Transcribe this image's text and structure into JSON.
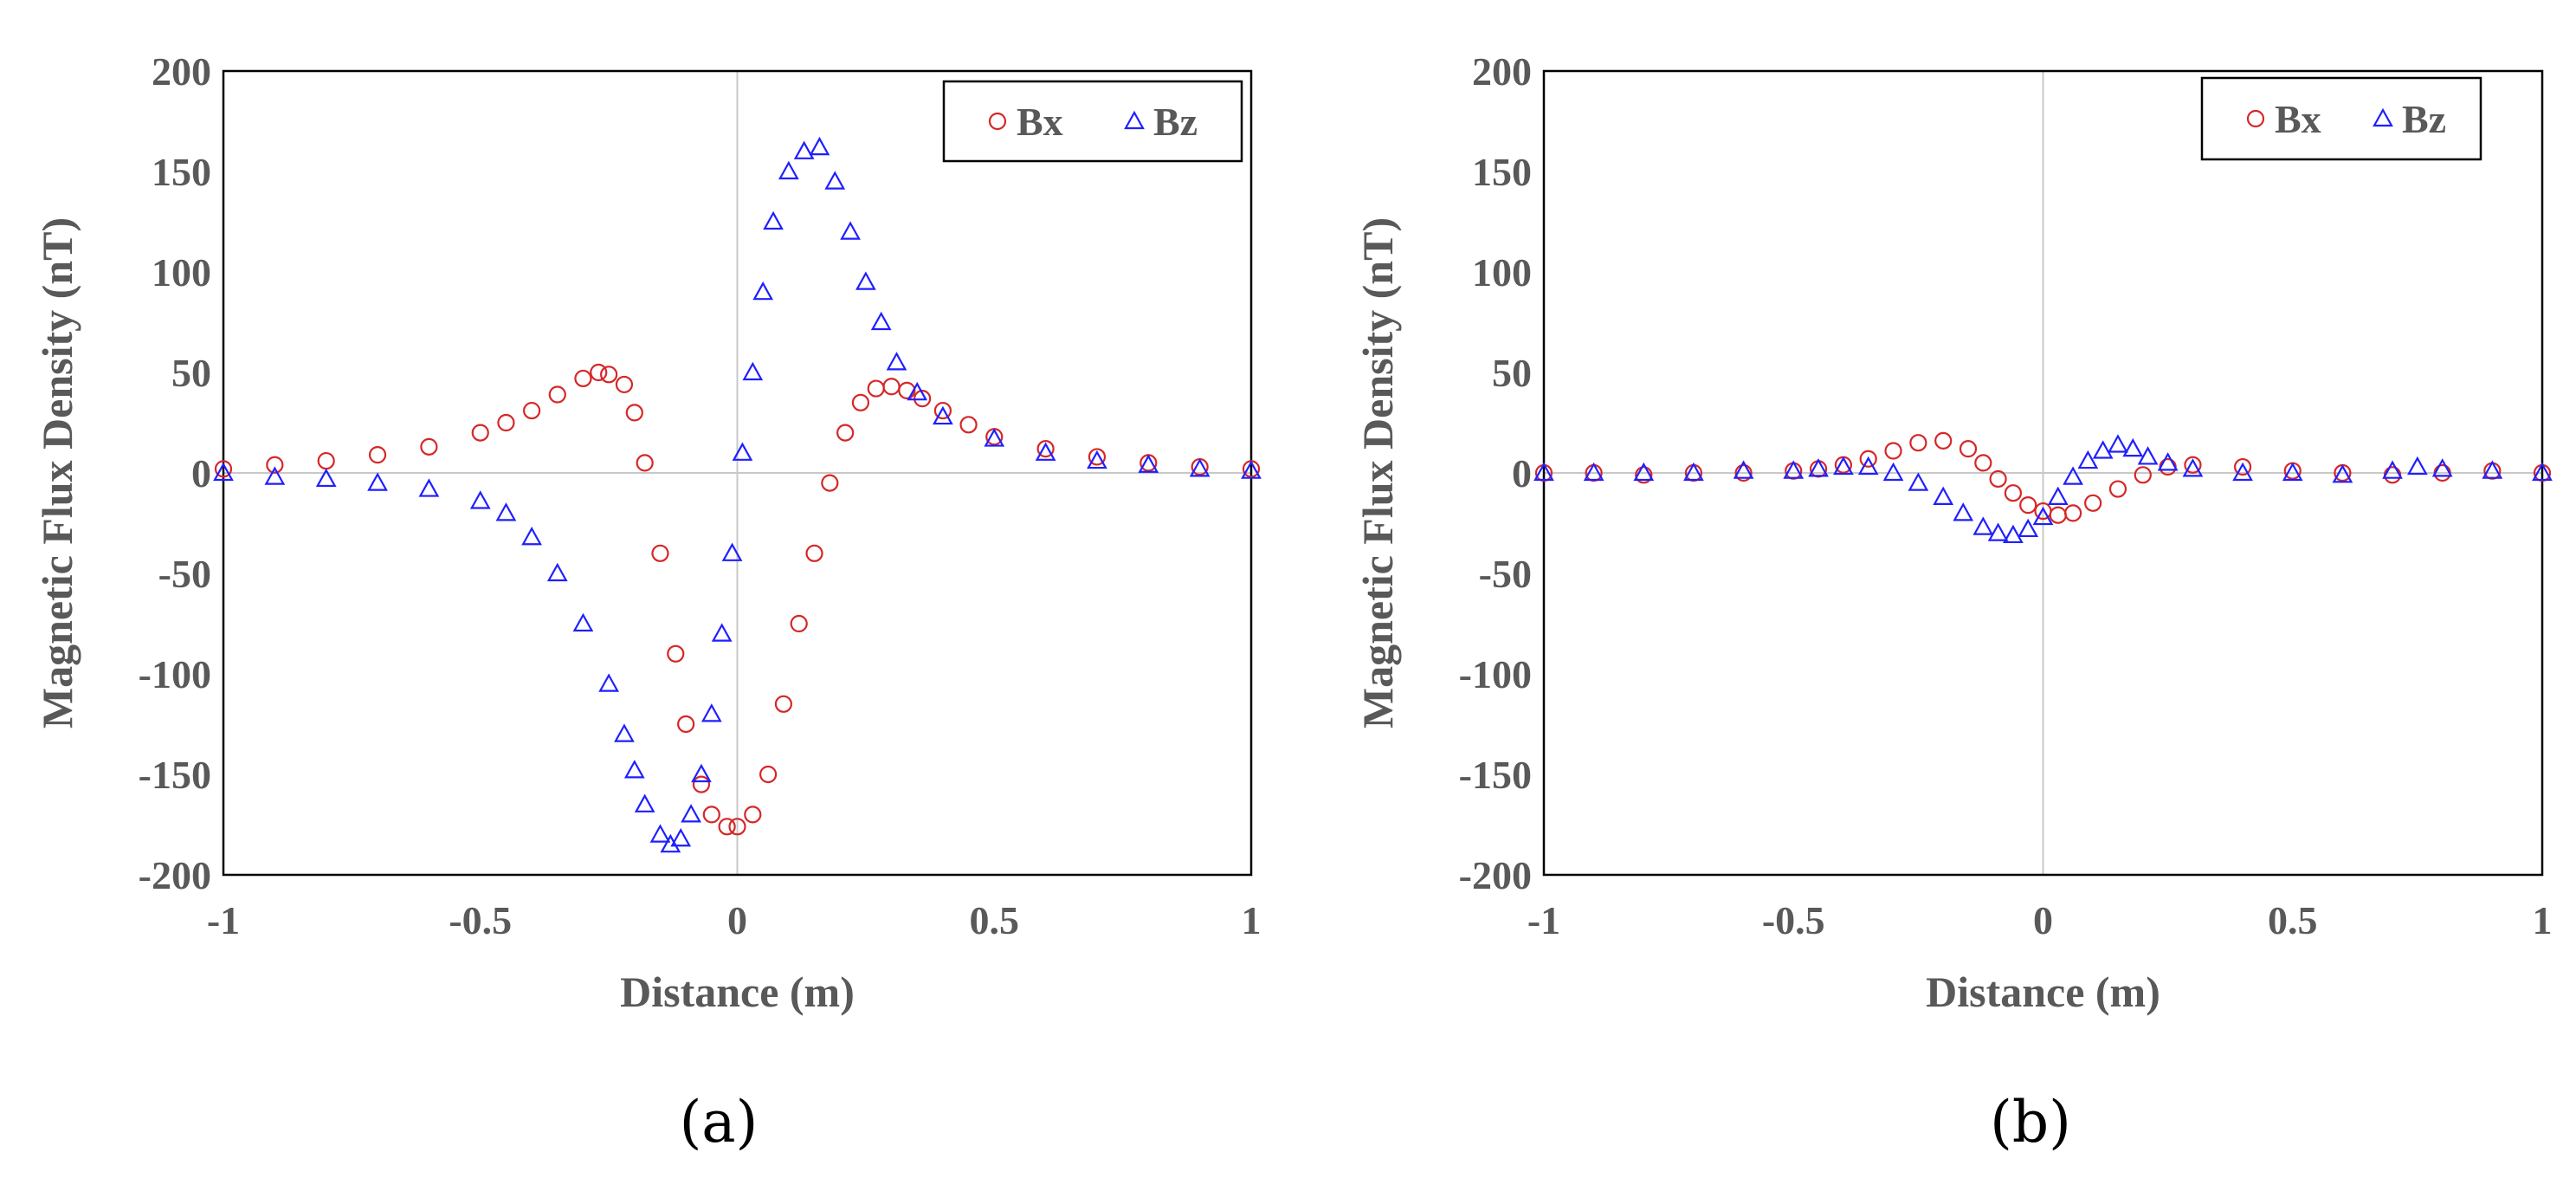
{
  "chart_data": [
    {
      "type": "scatter",
      "panel_label": "(a)",
      "xlabel": "Distance (m)",
      "ylabel": "Magnetic Flux Density (nT)",
      "xlim": [
        -1,
        1
      ],
      "ylim": [
        -200,
        200
      ],
      "xticks": [
        "-1",
        "-0.5",
        "0",
        "0.5",
        "1"
      ],
      "yticks": [
        "200",
        "150",
        "100",
        "50",
        "0",
        "-50",
        "-100",
        "-150",
        "-200"
      ],
      "legend_position": "top-right",
      "series": [
        {
          "name": "Bx",
          "marker": "circle",
          "color": "#d62728",
          "x": [
            -1.0,
            -0.9,
            -0.8,
            -0.7,
            -0.6,
            -0.5,
            -0.45,
            -0.4,
            -0.35,
            -0.3,
            -0.27,
            -0.25,
            -0.22,
            -0.2,
            -0.18,
            -0.15,
            -0.12,
            -0.1,
            -0.07,
            -0.05,
            -0.02,
            0.0,
            0.03,
            0.06,
            0.09,
            0.12,
            0.15,
            0.18,
            0.21,
            0.24,
            0.27,
            0.3,
            0.33,
            0.36,
            0.4,
            0.45,
            0.5,
            0.6,
            0.7,
            0.8,
            0.9,
            1.0
          ],
          "y": [
            2,
            4,
            6,
            9,
            13,
            20,
            25,
            31,
            39,
            47,
            50,
            49,
            44,
            30,
            5,
            -40,
            -90,
            -125,
            -155,
            -170,
            -176,
            -176,
            -170,
            -150,
            -115,
            -75,
            -40,
            -5,
            20,
            35,
            42,
            43,
            41,
            37,
            31,
            24,
            18,
            12,
            8,
            5,
            3,
            2
          ]
        },
        {
          "name": "Bz",
          "marker": "triangle",
          "color": "#1f1fff",
          "x": [
            -1.0,
            -0.9,
            -0.8,
            -0.7,
            -0.6,
            -0.5,
            -0.45,
            -0.4,
            -0.35,
            -0.3,
            -0.25,
            -0.22,
            -0.2,
            -0.18,
            -0.15,
            -0.13,
            -0.11,
            -0.09,
            -0.07,
            -0.05,
            -0.03,
            -0.01,
            0.01,
            0.03,
            0.05,
            0.07,
            0.1,
            0.13,
            0.16,
            0.19,
            0.22,
            0.25,
            0.28,
            0.31,
            0.35,
            0.4,
            0.5,
            0.6,
            0.7,
            0.8,
            0.9,
            1.0
          ],
          "y": [
            0,
            -2,
            -3,
            -5,
            -8,
            -14,
            -20,
            -32,
            -50,
            -75,
            -105,
            -130,
            -148,
            -165,
            -180,
            -185,
            -182,
            -170,
            -150,
            -120,
            -80,
            -40,
            10,
            50,
            90,
            125,
            150,
            160,
            162,
            145,
            120,
            95,
            75,
            55,
            40,
            28,
            17,
            10,
            6,
            4,
            2,
            1
          ]
        }
      ]
    },
    {
      "type": "scatter",
      "panel_label": "(b)",
      "xlabel": "Distance (m)",
      "ylabel": "Magnetic Flux Density (nT)",
      "xlim": [
        -1,
        1
      ],
      "ylim": [
        -200,
        200
      ],
      "xticks": [
        "-1",
        "-0.5",
        "0",
        "0.5",
        "1"
      ],
      "yticks": [
        "200",
        "150",
        "100",
        "50",
        "0",
        "-50",
        "-100",
        "-150",
        "-200"
      ],
      "legend_position": "top-right",
      "series": [
        {
          "name": "Bx",
          "marker": "circle",
          "color": "#d62728",
          "x": [
            -1.0,
            -0.9,
            -0.8,
            -0.7,
            -0.6,
            -0.5,
            -0.45,
            -0.4,
            -0.35,
            -0.3,
            -0.25,
            -0.2,
            -0.15,
            -0.12,
            -0.09,
            -0.06,
            -0.03,
            0.0,
            0.03,
            0.06,
            0.1,
            0.15,
            0.2,
            0.25,
            0.3,
            0.4,
            0.5,
            0.6,
            0.7,
            0.8,
            0.9,
            1.0
          ],
          "y": [
            0,
            0,
            -1,
            0,
            0,
            1,
            2,
            4,
            7,
            11,
            15,
            16,
            12,
            5,
            -3,
            -10,
            -16,
            -19,
            -21,
            -20,
            -15,
            -8,
            -1,
            3,
            4,
            3,
            1,
            0,
            -1,
            0,
            1,
            0
          ]
        },
        {
          "name": "Bz",
          "marker": "triangle",
          "color": "#1f1fff",
          "x": [
            -1.0,
            -0.9,
            -0.8,
            -0.7,
            -0.6,
            -0.5,
            -0.45,
            -0.4,
            -0.35,
            -0.3,
            -0.25,
            -0.2,
            -0.16,
            -0.12,
            -0.09,
            -0.06,
            -0.03,
            0.0,
            0.03,
            0.06,
            0.09,
            0.12,
            0.15,
            0.18,
            0.21,
            0.25,
            0.3,
            0.4,
            0.5,
            0.6,
            0.7,
            0.75,
            0.8,
            0.9,
            1.0
          ],
          "y": [
            0,
            0,
            0,
            0,
            1,
            1,
            2,
            3,
            3,
            0,
            -5,
            -12,
            -20,
            -27,
            -30,
            -31,
            -28,
            -22,
            -12,
            -2,
            6,
            11,
            14,
            12,
            8,
            5,
            2,
            0,
            0,
            -1,
            1,
            3,
            2,
            1,
            0
          ]
        }
      ]
    }
  ]
}
